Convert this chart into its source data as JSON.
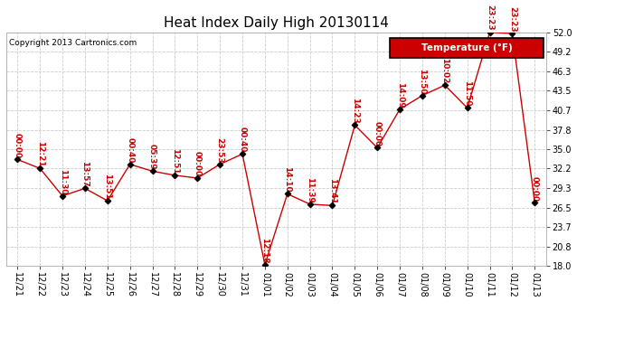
{
  "title": "Heat Index Daily High 20130114",
  "copyright": "Copyright 2013 Cartronics.com",
  "legend_label": "Temperature (°F)",
  "legend_bg": "#cc0000",
  "legend_text_color": "#ffffff",
  "line_color": "#cc0000",
  "marker_color": "#000000",
  "label_color": "#cc0000",
  "bg_color": "#ffffff",
  "grid_color": "#cccccc",
  "title_color": "#000000",
  "copyright_color": "#000000",
  "ylim": [
    18.0,
    52.0
  ],
  "yticks": [
    18.0,
    20.8,
    23.7,
    26.5,
    29.3,
    32.2,
    35.0,
    37.8,
    40.7,
    43.5,
    46.3,
    49.2,
    52.0
  ],
  "dates": [
    "12/21",
    "12/22",
    "12/23",
    "12/24",
    "12/25",
    "12/26",
    "12/27",
    "12/28",
    "12/29",
    "12/30",
    "12/31",
    "01/01",
    "01/02",
    "01/03",
    "01/04",
    "01/05",
    "01/06",
    "01/07",
    "01/08",
    "01/09",
    "01/10",
    "01/11",
    "01/12",
    "01/13"
  ],
  "values": [
    33.5,
    32.2,
    28.2,
    29.3,
    27.5,
    32.8,
    31.8,
    31.2,
    30.8,
    32.8,
    34.3,
    18.2,
    28.5,
    27.0,
    26.8,
    38.5,
    35.2,
    40.8,
    42.8,
    44.3,
    41.0,
    52.0,
    51.8,
    27.2
  ],
  "time_labels": [
    "00:00",
    "12:21",
    "11:30",
    "13:57",
    "13:51",
    "00:40",
    "05:39",
    "12:51",
    "00:00",
    "23:53",
    "00:40",
    "12:18",
    "14:10",
    "11:39",
    "13:41",
    "14:23",
    "00:00",
    "14:09",
    "13:50",
    "10:02",
    "11:50",
    "23:23",
    "23:23",
    "00:00"
  ],
  "title_fontsize": 11,
  "label_fontsize": 6.5,
  "tick_fontsize": 7,
  "copyright_fontsize": 6.5,
  "legend_fontsize": 7.5
}
